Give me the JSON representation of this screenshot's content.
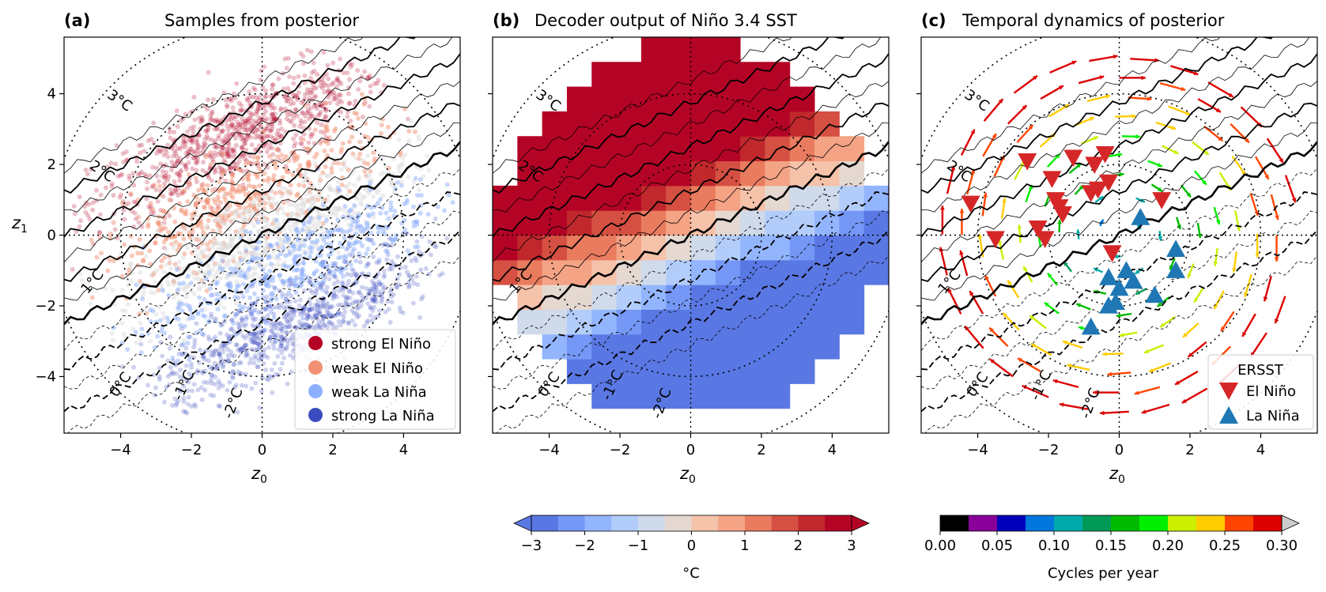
{
  "chart_data": [
    {
      "type": "scatter",
      "panel_label": "(a)",
      "title": "Samples from posterior",
      "xlabel": "z",
      "xlabel_sub": "0",
      "ylabel": "z",
      "ylabel_sub": "1",
      "xlim": [
        -5.6,
        5.6
      ],
      "ylim": [
        -5.6,
        5.6
      ],
      "xticks": [
        -4,
        -2,
        0,
        2,
        4
      ],
      "yticks": [
        -4,
        -2,
        0,
        2,
        4
      ],
      "xtick_labels": [
        "−4",
        "−2",
        "0",
        "2",
        "4"
      ],
      "ytick_labels": [
        "−4",
        "−2",
        "0",
        "2",
        "4"
      ],
      "contour_labels": [
        "3°C",
        "2°C",
        "1°C",
        "0°C",
        "-1°C",
        "-2°C"
      ],
      "legend": [
        {
          "label": "strong El Niño",
          "color": "#b40426"
        },
        {
          "label": "weak El Niño",
          "color": "#f29274"
        },
        {
          "label": "weak La Niña",
          "color": "#8db0fe"
        },
        {
          "label": "strong La Niña",
          "color": "#3b4cc0"
        }
      ],
      "legend_position": "lower-right"
    },
    {
      "type": "heatmap",
      "panel_label": "(b)",
      "title": "Decoder output of Niño 3.4 SST",
      "xlabel": "z",
      "xlabel_sub": "0",
      "xlim": [
        -5.6,
        5.6
      ],
      "ylim": [
        -5.6,
        5.6
      ],
      "xticks": [
        -4,
        -2,
        0,
        2,
        4
      ],
      "xtick_labels": [
        "−4",
        "−2",
        "0",
        "2",
        "4"
      ],
      "contour_labels": [
        "3°C",
        "2°C",
        "1°C",
        "0°C",
        "-1°C",
        "-2°C"
      ],
      "colorbar": {
        "label": "°C",
        "ticks": [
          -3,
          -2,
          -1,
          0,
          1,
          2,
          3
        ],
        "tick_labels": [
          "−3",
          "−2",
          "−1",
          "0",
          "1",
          "2",
          "3"
        ],
        "colors": [
          "#5a78e4",
          "#7597f6",
          "#93b5fe",
          "#b3cdfb",
          "#cfdaea",
          "#e5d8d1",
          "#f5c2aa",
          "#f4a385",
          "#e97b5f",
          "#d55042",
          "#c0282c",
          "#b40426"
        ]
      }
    },
    {
      "type": "scatter",
      "panel_label": "(c)",
      "title": "Temporal dynamics of posterior",
      "xlabel": "z",
      "xlabel_sub": "0",
      "xlim": [
        -5.6,
        5.6
      ],
      "ylim": [
        -5.6,
        5.6
      ],
      "xticks": [
        -4,
        -2,
        0,
        2,
        4
      ],
      "xtick_labels": [
        "−4",
        "−2",
        "0",
        "2",
        "4"
      ],
      "contour_labels": [
        "3°C",
        "2°C",
        "1°C",
        "0°C",
        "-1°C",
        "-2°C"
      ],
      "legend_title": "ERSST",
      "legend": [
        {
          "label": "El Niño",
          "color": "#d62728",
          "marker": "triangle-down"
        },
        {
          "label": "La Niña",
          "color": "#1f77b4",
          "marker": "triangle-up"
        }
      ],
      "legend_position": "lower-right",
      "el_nino_events": [
        [
          -4.2,
          0.9
        ],
        [
          -3.5,
          -0.1
        ],
        [
          -2.6,
          2.1
        ],
        [
          -2.3,
          0.2
        ],
        [
          -2.1,
          -0.1
        ],
        [
          -1.9,
          1.6
        ],
        [
          -1.8,
          1.0
        ],
        [
          -1.7,
          0.8
        ],
        [
          -1.6,
          0.6
        ],
        [
          -1.3,
          2.2
        ],
        [
          -0.7,
          2.0
        ],
        [
          -0.4,
          2.3
        ],
        [
          -0.8,
          1.2
        ],
        [
          -0.6,
          1.3
        ],
        [
          -0.3,
          1.5
        ],
        [
          -0.2,
          -0.5
        ],
        [
          1.2,
          1.0
        ]
      ],
      "la_nina_events": [
        [
          0.6,
          0.5
        ],
        [
          1.6,
          -0.4
        ],
        [
          1.6,
          -1.0
        ],
        [
          -0.3,
          -1.2
        ],
        [
          0.2,
          -1.0
        ],
        [
          0.0,
          -1.5
        ],
        [
          -0.3,
          -2.0
        ],
        [
          -0.1,
          -1.9
        ],
        [
          1.0,
          -1.7
        ],
        [
          -0.8,
          -2.6
        ],
        [
          0.4,
          -1.3
        ]
      ],
      "colorbar": {
        "label": "Cycles per year",
        "ticks": [
          0.0,
          0.05,
          0.1,
          0.15,
          0.2,
          0.25,
          0.3
        ],
        "tick_labels": [
          "0.00",
          "0.05",
          "0.10",
          "0.15",
          "0.20",
          "0.25",
          "0.30"
        ],
        "colors": [
          "#000000",
          "#880099",
          "#0000bb",
          "#0077dd",
          "#00aaaa",
          "#009955",
          "#00bb00",
          "#00ee00",
          "#ccee00",
          "#ffcc00",
          "#ff4400",
          "#dd0000"
        ]
      }
    }
  ]
}
